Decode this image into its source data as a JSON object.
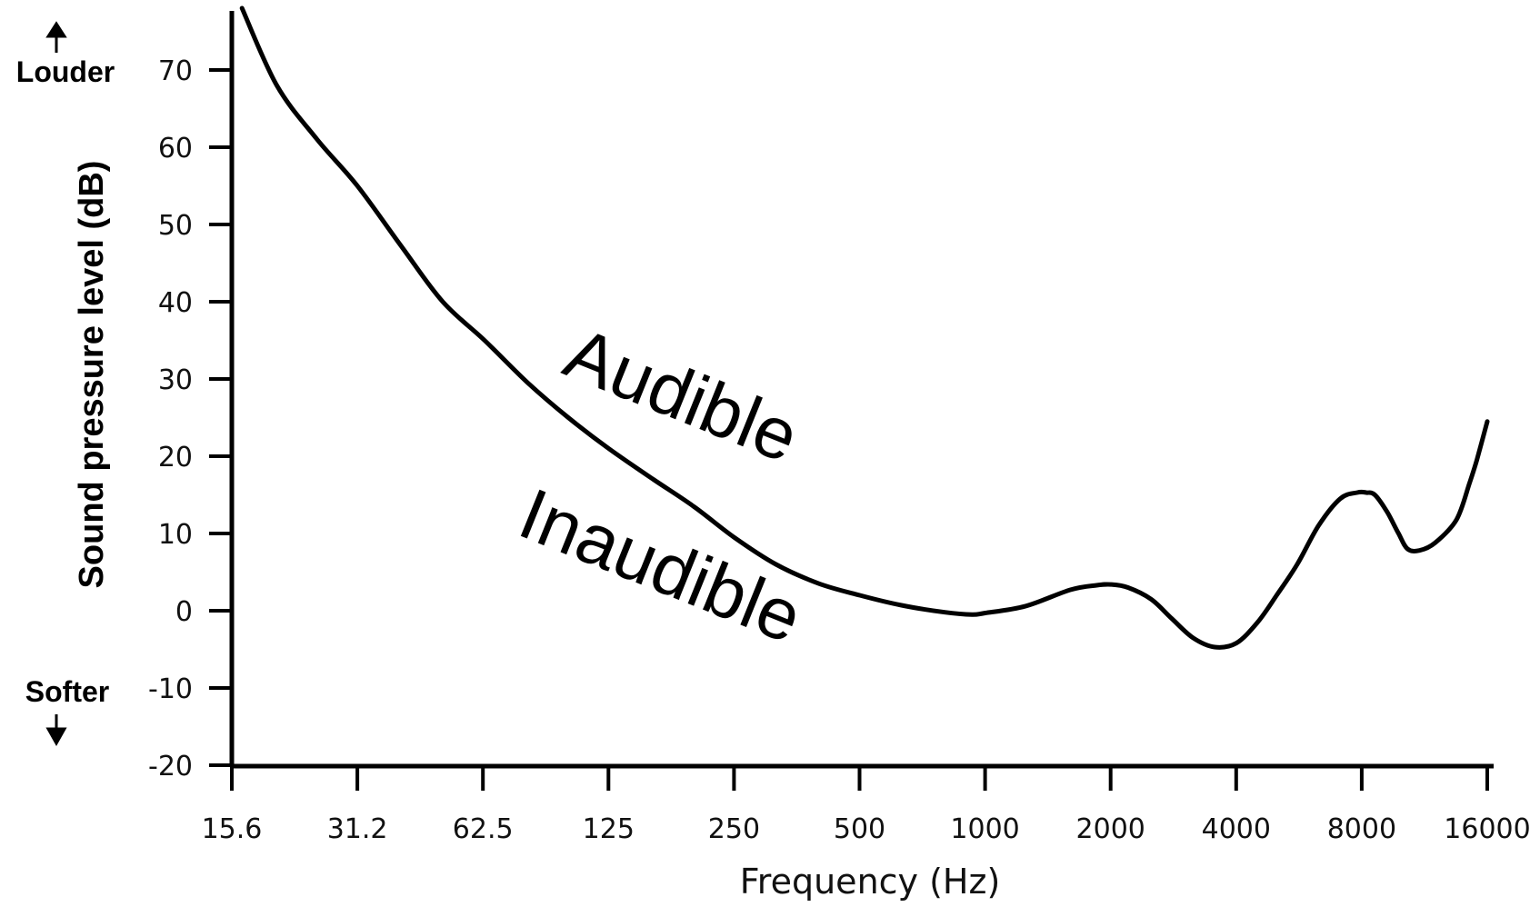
{
  "chart_data": {
    "type": "line",
    "xlabel": "Frequency (Hz)",
    "ylabel": "Sound pressure level (dB)",
    "x_scale": "log2",
    "xlim": [
      15.6,
      16000
    ],
    "ylim": [
      -20,
      77
    ],
    "x_ticks": [
      "15.6",
      "31.2",
      "62.5",
      "125",
      "250",
      "500",
      "1000",
      "2000",
      "4000",
      "8000",
      "16000"
    ],
    "y_ticks": [
      "70",
      "60",
      "50",
      "40",
      "30",
      "20",
      "10",
      "0",
      "-10",
      "-20"
    ],
    "annotations": {
      "louder": "Louder",
      "softer": "Softer",
      "audible": "Audible",
      "inaudible": "Inaudible"
    },
    "series": [
      {
        "x": [
          16.5,
          20,
          25,
          31.2,
          40,
          50,
          63,
          80,
          100,
          125,
          160,
          200,
          250,
          315,
          400,
          500,
          630,
          800,
          930,
          1000,
          1250,
          1600,
          1850,
          2000,
          2200,
          2500,
          2800,
          3150,
          3550,
          4000,
          4500,
          5000,
          5600,
          6300,
          7100,
          7800,
          8200,
          8600,
          9200,
          9800,
          10300,
          11000,
          12000,
          13500,
          14500,
          15100,
          16000
        ],
        "y": [
          78,
          68,
          61,
          55,
          47,
          40,
          35,
          29.5,
          25,
          21,
          17,
          13.5,
          9.5,
          6,
          3.5,
          2,
          0.7,
          -0.2,
          -0.5,
          -0.3,
          0.6,
          2.7,
          3.3,
          3.4,
          3.0,
          1.5,
          -1.0,
          -3.5,
          -4.7,
          -4.2,
          -1.5,
          2,
          6,
          11,
          14.5,
          15.3,
          15.3,
          15.0,
          12.8,
          10.0,
          8.0,
          7.8,
          8.8,
          11.8,
          16.5,
          19.5,
          24.5
        ]
      }
    ]
  }
}
